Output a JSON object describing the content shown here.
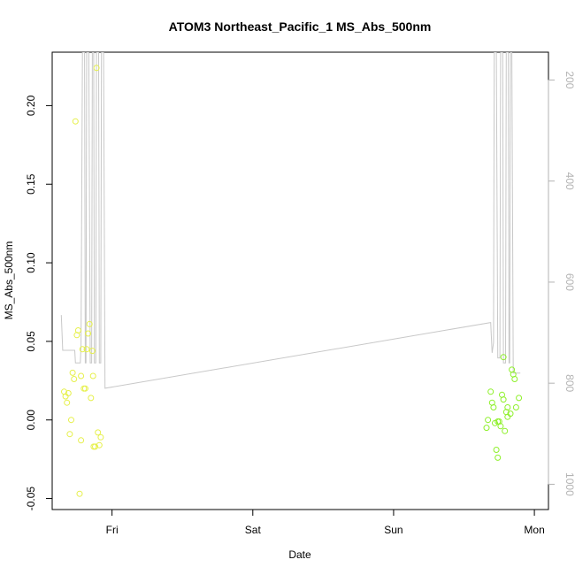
{
  "chart_data": {
    "type": "scatter",
    "title": "ATOM3 Northeast_Pacific_1 MS_Abs_500nm",
    "xlabel": "Date",
    "ylabel": "MS_Abs_500nm",
    "x_unit": "days since Thu 00:00",
    "xlim": [
      0.575,
      4.1
    ],
    "ylim": [
      -0.057,
      0.234
    ],
    "x_ticks": [
      {
        "value": 1,
        "label": "Fri"
      },
      {
        "value": 2,
        "label": "Sat"
      },
      {
        "value": 3,
        "label": "Sun"
      },
      {
        "value": 4,
        "label": "Mon"
      }
    ],
    "y_ticks": [
      {
        "value": -0.05,
        "label": "-0.05"
      },
      {
        "value": 0.0,
        "label": "0.00"
      },
      {
        "value": 0.05,
        "label": "0.05"
      },
      {
        "value": 0.1,
        "label": "0.10"
      },
      {
        "value": 0.15,
        "label": "0.15"
      },
      {
        "value": 0.2,
        "label": "0.20"
      }
    ],
    "y2_lim": [
      1050,
      145
    ],
    "y2_ticks": [
      {
        "value": 200,
        "label": "200"
      },
      {
        "value": 400,
        "label": "400"
      },
      {
        "value": 600,
        "label": "600"
      },
      {
        "value": 800,
        "label": "800"
      },
      {
        "value": 1000,
        "label": "1000"
      }
    ],
    "grid": false,
    "legend": "none",
    "colors": {
      "points_early": "#e6f04a",
      "points_late": "#8ef02a",
      "altitude_line": "#c8c8c8",
      "axis": "#000000",
      "right_axis": "#b3b3b3"
    },
    "series": [
      {
        "type": "scatter",
        "axis": "left",
        "points": [
          [
            0.66,
            0.018
          ],
          [
            0.67,
            0.015
          ],
          [
            0.68,
            0.011
          ],
          [
            0.69,
            0.017
          ],
          [
            0.7,
            -0.009
          ],
          [
            0.71,
            0.0
          ],
          [
            0.72,
            0.03
          ],
          [
            0.73,
            0.026
          ],
          [
            0.74,
            0.19
          ],
          [
            0.75,
            0.054
          ],
          [
            0.76,
            0.057
          ],
          [
            0.77,
            -0.047
          ],
          [
            0.78,
            -0.013
          ],
          [
            0.78,
            0.028
          ],
          [
            0.79,
            0.045
          ],
          [
            0.8,
            0.02
          ],
          [
            0.81,
            0.02
          ],
          [
            0.82,
            0.045
          ],
          [
            0.83,
            0.055
          ],
          [
            0.84,
            0.061
          ],
          [
            0.85,
            0.014
          ],
          [
            0.86,
            0.044
          ],
          [
            0.865,
            0.028
          ],
          [
            0.87,
            -0.017
          ],
          [
            0.88,
            -0.017
          ],
          [
            0.89,
            0.224
          ],
          [
            0.9,
            -0.008
          ],
          [
            0.91,
            -0.016
          ],
          [
            0.92,
            -0.011
          ],
          [
            3.66,
            -0.005
          ],
          [
            3.67,
            0.0
          ],
          [
            3.69,
            0.018
          ],
          [
            3.7,
            0.011
          ],
          [
            3.71,
            0.008
          ],
          [
            3.72,
            -0.002
          ],
          [
            3.73,
            -0.019
          ],
          [
            3.74,
            -0.024
          ],
          [
            3.74,
            -0.001
          ],
          [
            3.75,
            -0.001
          ],
          [
            3.76,
            -0.004
          ],
          [
            3.77,
            0.016
          ],
          [
            3.78,
            0.04
          ],
          [
            3.78,
            0.013
          ],
          [
            3.79,
            -0.007
          ],
          [
            3.8,
            0.005
          ],
          [
            3.81,
            0.008
          ],
          [
            3.81,
            0.002
          ],
          [
            3.83,
            0.004
          ],
          [
            3.84,
            0.032
          ],
          [
            3.85,
            0.029
          ],
          [
            3.86,
            0.026
          ],
          [
            3.87,
            0.008
          ],
          [
            3.89,
            0.014
          ]
        ]
      },
      {
        "type": "line",
        "axis": "right",
        "points": [
          [
            0.64,
            665
          ],
          [
            0.65,
            735
          ],
          [
            0.715,
            735
          ],
          [
            0.735,
            735
          ],
          [
            0.74,
            760
          ],
          [
            0.775,
            760
          ],
          [
            0.78,
            725
          ],
          [
            0.79,
            145
          ],
          [
            0.805,
            145
          ],
          [
            0.81,
            760
          ],
          [
            0.815,
            760
          ],
          [
            0.82,
            145
          ],
          [
            0.835,
            145
          ],
          [
            0.845,
            760
          ],
          [
            0.855,
            760
          ],
          [
            0.86,
            145
          ],
          [
            0.87,
            145
          ],
          [
            0.875,
            760
          ],
          [
            0.885,
            760
          ],
          [
            0.89,
            145
          ],
          [
            0.905,
            145
          ],
          [
            0.91,
            760
          ],
          [
            0.92,
            760
          ],
          [
            0.925,
            145
          ],
          [
            0.94,
            145
          ],
          [
            0.95,
            810
          ],
          [
            3.69,
            680
          ],
          [
            3.7,
            740
          ],
          [
            3.71,
            720
          ],
          [
            3.715,
            145
          ],
          [
            3.73,
            145
          ],
          [
            3.74,
            750
          ],
          [
            3.755,
            750
          ],
          [
            3.76,
            145
          ],
          [
            3.775,
            145
          ],
          [
            3.78,
            760
          ],
          [
            3.795,
            760
          ],
          [
            3.8,
            145
          ],
          [
            3.815,
            145
          ],
          [
            3.82,
            760
          ],
          [
            3.825,
            760
          ],
          [
            3.83,
            145
          ],
          [
            3.84,
            145
          ],
          [
            3.85,
            780
          ],
          [
            3.9,
            780
          ]
        ]
      }
    ]
  }
}
